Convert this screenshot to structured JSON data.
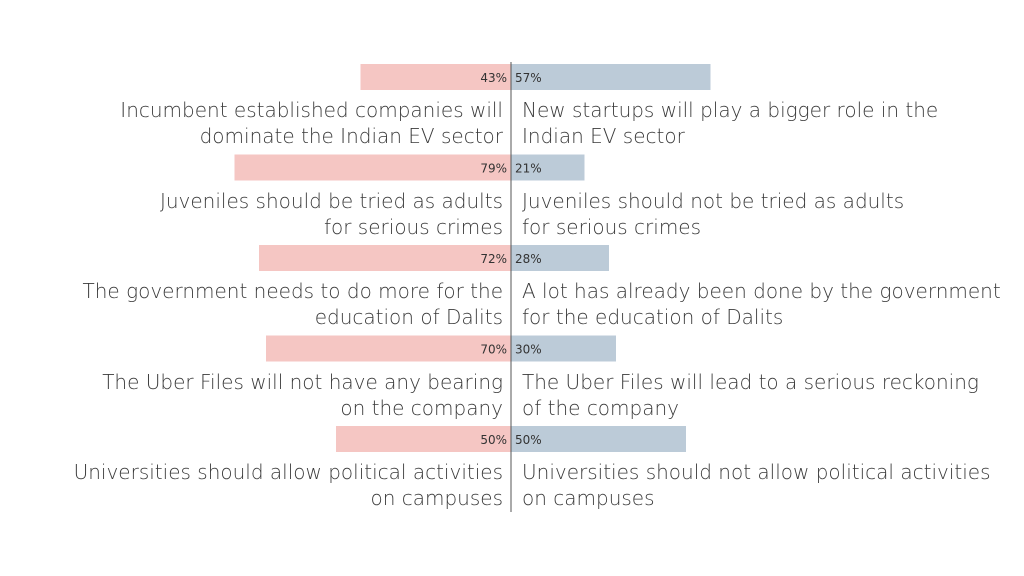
{
  "chart_data": {
    "type": "bar",
    "orientation": "diverging-horizontal",
    "colors": {
      "left": "#f5c6c3",
      "right": "#bccbd8",
      "axis": "#555555"
    },
    "rows": [
      {
        "left_label": "Incumbent established companies will\ndominate the Indian EV sector",
        "right_label": "New startups will play a bigger role in the\nIndian EV sector",
        "left_value": 43,
        "right_value": 57,
        "left_text": "43%",
        "right_text": "57%"
      },
      {
        "left_label": "Juveniles should be tried as adults\nfor serious crimes",
        "right_label": "Juveniles should not be tried as adults\nfor serious crimes",
        "left_value": 79,
        "right_value": 21,
        "left_text": "79%",
        "right_text": "21%"
      },
      {
        "left_label": "The government needs to do more for the\neducation of Dalits",
        "right_label": "A lot has already been done by the government\nfor the education of Dalits",
        "left_value": 72,
        "right_value": 28,
        "left_text": "72%",
        "right_text": "28%"
      },
      {
        "left_label": "The Uber Files will not have any bearing\non the company",
        "right_label": "The Uber Files will lead to a serious reckoning\nof the company",
        "left_value": 70,
        "right_value": 30,
        "left_text": "70%",
        "right_text": "30%"
      },
      {
        "left_label": "Universities should allow political activities\non campuses",
        "right_label": "Universities should not allow political activities\non campuses",
        "left_value": 50,
        "right_value": 50,
        "left_text": "50%",
        "right_text": "50%"
      }
    ]
  }
}
